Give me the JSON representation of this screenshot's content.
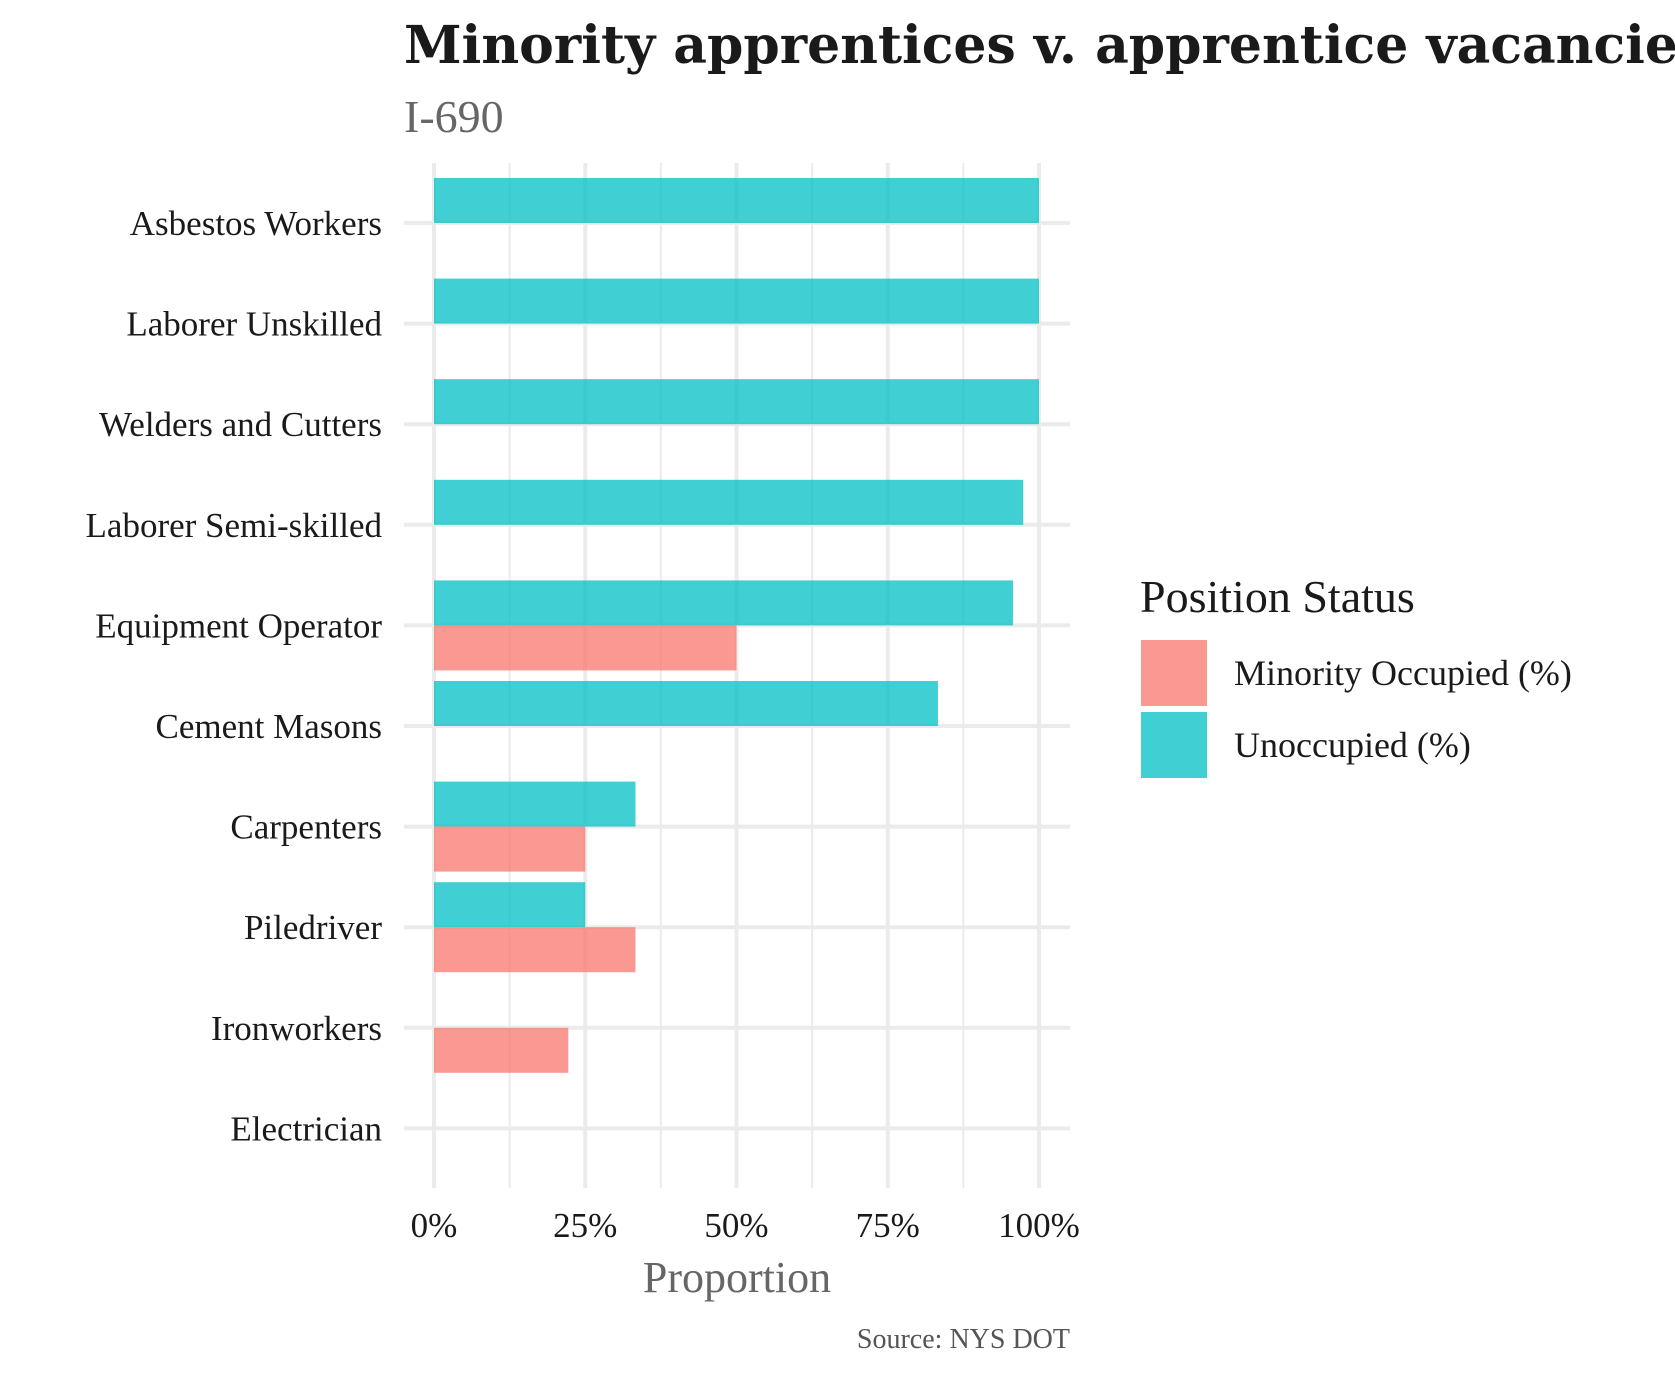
{
  "chart_data": {
    "type": "bar",
    "orientation": "horizontal",
    "title": "Minority apprentices v. apprentice vacancie",
    "subtitle": "I-690",
    "xlabel": "Proportion",
    "ylabel": "",
    "caption": "Source: NYS DOT",
    "xlim": [
      0,
      1
    ],
    "x_ticks": [
      0,
      0.25,
      0.5,
      0.75,
      1.0
    ],
    "x_tick_labels": [
      "0%",
      "25%",
      "50%",
      "75%",
      "100%"
    ],
    "grid": true,
    "legend_position": "right",
    "legend_title": "Position Status",
    "categories": [
      "Asbestos Workers",
      "Laborer Unskilled",
      "Welders and Cutters",
      "Laborer Semi-skilled",
      "Equipment Operator",
      "Cement Masons",
      "Carpenters",
      "Piledriver",
      "Ironworkers",
      "Electrician"
    ],
    "series": [
      {
        "name": "Minority Occupied (%)",
        "color": "#F8766D",
        "values": [
          0,
          0,
          0,
          0,
          0.5,
          0,
          0.25,
          0.333,
          0.222,
          0
        ]
      },
      {
        "name": "Unoccupied (%)",
        "color": "#00BFC4",
        "values": [
          1.0,
          1.0,
          1.0,
          0.974,
          0.957,
          0.833,
          0.333,
          0.25,
          0,
          0
        ]
      }
    ]
  }
}
